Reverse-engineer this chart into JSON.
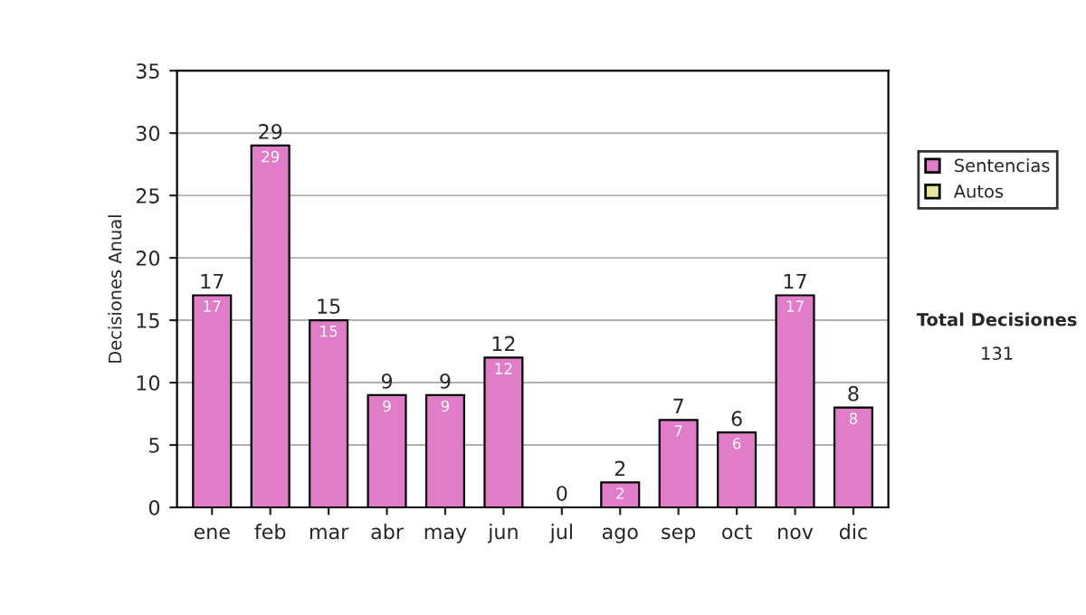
{
  "chart_data": {
    "type": "bar",
    "ylabel": "Decisiones Anual",
    "categories": [
      "ene",
      "feb",
      "mar",
      "abr",
      "may",
      "jun",
      "jul",
      "ago",
      "sep",
      "oct",
      "nov",
      "dic"
    ],
    "series": [
      {
        "name": "Sentencias",
        "color": "#e07cc8",
        "values": [
          17,
          29,
          15,
          9,
          9,
          12,
          0,
          2,
          7,
          6,
          17,
          8
        ],
        "value_labels": [
          "17",
          "29",
          "15",
          "9",
          "9",
          "12",
          null,
          "2",
          "7",
          "6",
          "17",
          "8"
        ]
      },
      {
        "name": "Autos",
        "color": "#e6e6a0",
        "values": [
          0,
          0,
          0,
          0,
          0,
          0,
          0,
          0,
          0,
          0,
          0,
          0
        ]
      }
    ],
    "stacked": true,
    "totals": [
      "17",
      "29",
      "15",
      "9",
      "9",
      "12",
      "0",
      "2",
      "7",
      "6",
      "17",
      "8"
    ],
    "ylim": [
      0,
      35
    ],
    "yticks": [
      0,
      5,
      10,
      15,
      20,
      25,
      30,
      35
    ],
    "grid": "y",
    "legend": "right",
    "annotations": [
      "Total Decisiones",
      "131"
    ]
  }
}
